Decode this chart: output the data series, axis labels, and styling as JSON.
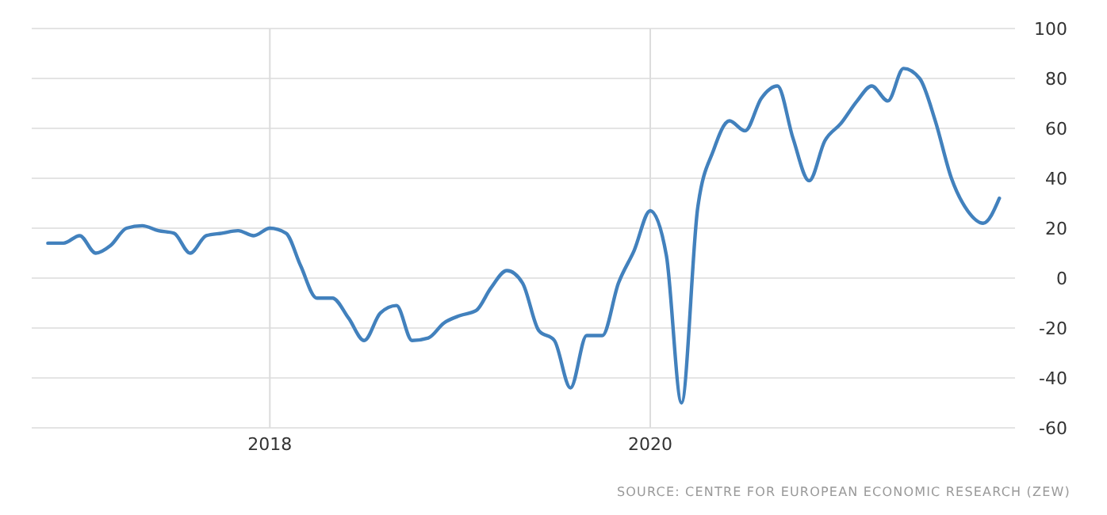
{
  "chart_data": {
    "type": "line",
    "x": [
      "2016-11",
      "2016-12",
      "2017-01",
      "2017-02",
      "2017-03",
      "2017-04",
      "2017-05",
      "2017-06",
      "2017-07",
      "2017-08",
      "2017-09",
      "2017-10",
      "2017-11",
      "2017-12",
      "2018-01",
      "2018-02",
      "2018-03",
      "2018-04",
      "2018-05",
      "2018-06",
      "2018-07",
      "2018-08",
      "2018-09",
      "2018-10",
      "2018-11",
      "2018-12",
      "2019-01",
      "2019-02",
      "2019-03",
      "2019-04",
      "2019-05",
      "2019-06",
      "2019-07",
      "2019-08",
      "2019-09",
      "2019-10",
      "2019-11",
      "2019-12",
      "2020-01",
      "2020-02",
      "2020-03",
      "2020-04",
      "2020-05",
      "2020-06",
      "2020-07",
      "2020-08",
      "2020-09",
      "2020-10",
      "2020-11",
      "2020-12",
      "2021-01",
      "2021-02",
      "2021-03",
      "2021-04",
      "2021-05",
      "2021-06",
      "2021-07",
      "2021-08",
      "2021-09",
      "2021-10",
      "2021-11"
    ],
    "series": [
      {
        "color": "#4281bd",
        "values": [
          14,
          14,
          17,
          10,
          13,
          20,
          21,
          19,
          18,
          10,
          17,
          18,
          19,
          17,
          20,
          18,
          5,
          -8,
          -8,
          -16,
          -25,
          -14,
          -11,
          -25,
          -24,
          -18,
          -15,
          -13,
          -4,
          3,
          -2,
          -21,
          -25,
          -44,
          -23,
          -23,
          -2,
          11,
          27,
          9,
          -50,
          28,
          51,
          63,
          59,
          72,
          77,
          56,
          39,
          55,
          62,
          71,
          77,
          71,
          84,
          80,
          63,
          40,
          27,
          22,
          32
        ]
      }
    ],
    "xlim": [
      "2016-10",
      "2021-12"
    ],
    "xticks": [
      {
        "value": "2018-01",
        "label": "2018"
      },
      {
        "value": "2020-01",
        "label": "2020"
      }
    ],
    "ylim": [
      -60,
      100
    ],
    "yticks": [
      -60,
      -40,
      -20,
      0,
      20,
      40,
      60,
      80,
      100
    ],
    "grid": true,
    "marker": "none",
    "line_style": "solid",
    "annotations": [
      "SOURCE: CENTRE FOR EUROPEAN ECONOMIC RESEARCH (ZEW)"
    ]
  }
}
